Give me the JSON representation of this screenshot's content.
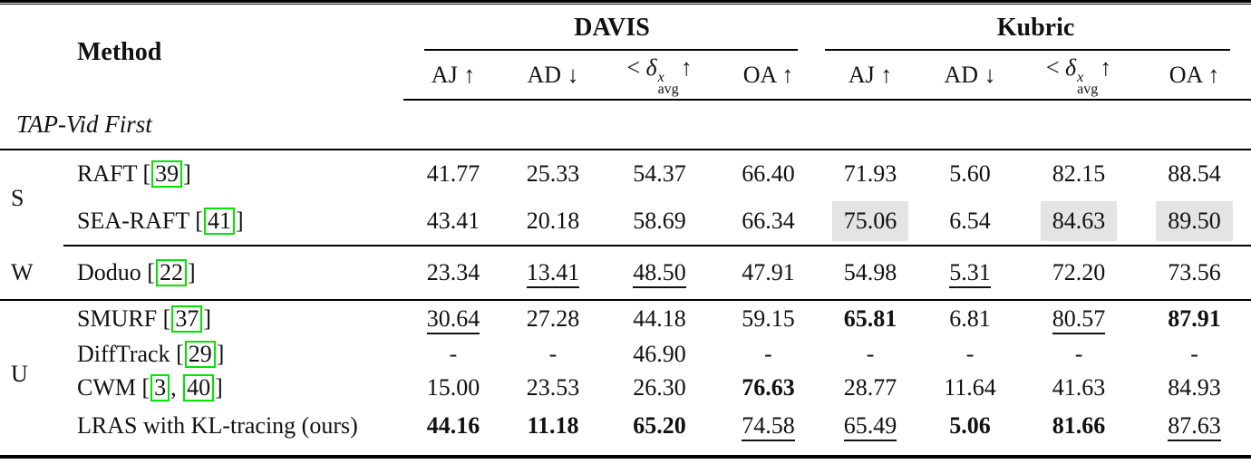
{
  "colors": {
    "citation_green": "#00e400",
    "highlight_gray": "#e4e4e4",
    "rule_black": "#000000"
  },
  "header": {
    "method": "Method",
    "datasets": [
      "DAVIS",
      "Kubric"
    ],
    "metrics": [
      {
        "label": "AJ",
        "arrow": "↑"
      },
      {
        "label": "AD",
        "arrow": "↓"
      },
      {
        "prefix": "<",
        "symbol": "δ",
        "sup": "x",
        "sub": "avg",
        "arrow": "↑"
      },
      {
        "label": "OA",
        "arrow": "↑"
      }
    ]
  },
  "section": {
    "label": "TAP-Vid First"
  },
  "groups": [
    {
      "label": "S",
      "rows": [
        {
          "method": "RAFT",
          "refs": [
            "39"
          ],
          "cells": [
            {
              "v": "41.77"
            },
            {
              "v": "25.33"
            },
            {
              "v": "54.37"
            },
            {
              "v": "66.40"
            },
            {
              "v": "71.93"
            },
            {
              "v": "5.60"
            },
            {
              "v": "82.15"
            },
            {
              "v": "88.54"
            }
          ]
        },
        {
          "method": "SEA-RAFT",
          "refs": [
            "41"
          ],
          "cells": [
            {
              "v": "43.41"
            },
            {
              "v": "20.18"
            },
            {
              "v": "58.69"
            },
            {
              "v": "66.34"
            },
            {
              "v": "75.06",
              "hl": true
            },
            {
              "v": "6.54"
            },
            {
              "v": "84.63",
              "hl": true
            },
            {
              "v": "89.50",
              "hl": true
            }
          ]
        }
      ]
    },
    {
      "label": "W",
      "rows": [
        {
          "method": "Doduo",
          "refs": [
            "22"
          ],
          "cells": [
            {
              "v": "23.34"
            },
            {
              "v": "13.41",
              "u": true
            },
            {
              "v": "48.50",
              "u": true
            },
            {
              "v": "47.91"
            },
            {
              "v": "54.98"
            },
            {
              "v": "5.31",
              "u": true
            },
            {
              "v": "72.20"
            },
            {
              "v": "73.56"
            }
          ]
        }
      ]
    },
    {
      "label": "U",
      "rows": [
        {
          "method": "SMURF",
          "refs": [
            "37"
          ],
          "cells": [
            {
              "v": "30.64",
              "u": true
            },
            {
              "v": "27.28"
            },
            {
              "v": "44.18"
            },
            {
              "v": "59.15"
            },
            {
              "v": "65.81",
              "b": true
            },
            {
              "v": "6.81"
            },
            {
              "v": "80.57",
              "u": true
            },
            {
              "v": "87.91",
              "b": true
            }
          ]
        },
        {
          "method": "DiffTrack",
          "refs": [
            "29"
          ],
          "cells": [
            {
              "v": "-"
            },
            {
              "v": "-"
            },
            {
              "v": "46.90"
            },
            {
              "v": "-"
            },
            {
              "v": "-"
            },
            {
              "v": "-"
            },
            {
              "v": "-"
            },
            {
              "v": "-"
            }
          ]
        },
        {
          "method": "CWM",
          "refs": [
            "3",
            "40"
          ],
          "cells": [
            {
              "v": "15.00"
            },
            {
              "v": "23.53"
            },
            {
              "v": "26.30"
            },
            {
              "v": "76.63",
              "b": true
            },
            {
              "v": "28.77"
            },
            {
              "v": "11.64"
            },
            {
              "v": "41.63"
            },
            {
              "v": "84.93"
            }
          ]
        },
        {
          "method": "LRAS with KL-tracing (ours)",
          "refs": [],
          "cells": [
            {
              "v": "44.16",
              "b": true
            },
            {
              "v": "11.18",
              "b": true
            },
            {
              "v": "65.20",
              "b": true
            },
            {
              "v": "74.58",
              "u": true
            },
            {
              "v": "65.49",
              "u": true
            },
            {
              "v": "5.06",
              "b": true
            },
            {
              "v": "81.66",
              "b": true
            },
            {
              "v": "87.63",
              "u": true
            }
          ]
        }
      ]
    }
  ]
}
